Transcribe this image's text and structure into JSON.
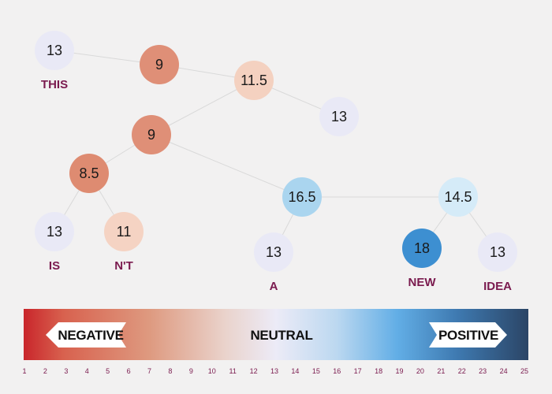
{
  "colors": {
    "background": "#f2f1f1",
    "edge": "#d9d9d9",
    "word": "#7a1a4e",
    "bar_negative": "#c9262b",
    "bar_neutral": "#eceaf6",
    "bar_positive_light": "#62aee6",
    "bar_positive_dark": "#2b4566"
  },
  "tree": {
    "nodes": [
      {
        "id": "n_this",
        "value": "13",
        "fill": "#e9e9f6",
        "word": "THIS"
      },
      {
        "id": "n_9a",
        "value": "9",
        "fill": "#df8f77",
        "word": ""
      },
      {
        "id": "n_115",
        "value": "11.5",
        "fill": "#f4d1c0",
        "word": ""
      },
      {
        "id": "n_13r",
        "value": "13",
        "fill": "#e9e9f6",
        "word": ""
      },
      {
        "id": "n_9b",
        "value": "9",
        "fill": "#df8f77",
        "word": ""
      },
      {
        "id": "n_85",
        "value": "8.5",
        "fill": "#de8b71",
        "word": ""
      },
      {
        "id": "n_is",
        "value": "13",
        "fill": "#e9e9f6",
        "word": "IS"
      },
      {
        "id": "n_nt",
        "value": "11",
        "fill": "#f5d3c3",
        "word": "N'T"
      },
      {
        "id": "n_165",
        "value": "16.5",
        "fill": "#aad5ef",
        "word": ""
      },
      {
        "id": "n_a",
        "value": "13",
        "fill": "#e9e9f6",
        "word": "A"
      },
      {
        "id": "n_145",
        "value": "14.5",
        "fill": "#d5ebf8",
        "word": ""
      },
      {
        "id": "n_new",
        "value": "18",
        "fill": "#3d8fd1",
        "word": "NEW"
      },
      {
        "id": "n_idea",
        "value": "13",
        "fill": "#e9e9f6",
        "word": "IDEA"
      }
    ],
    "edges": [
      [
        "n_this",
        "n_9a"
      ],
      [
        "n_9a",
        "n_115"
      ],
      [
        "n_115",
        "n_13r"
      ],
      [
        "n_115",
        "n_9b"
      ],
      [
        "n_9b",
        "n_85"
      ],
      [
        "n_85",
        "n_is"
      ],
      [
        "n_85",
        "n_nt"
      ],
      [
        "n_9b",
        "n_165"
      ],
      [
        "n_165",
        "n_a"
      ],
      [
        "n_165",
        "n_145"
      ],
      [
        "n_145",
        "n_new"
      ],
      [
        "n_145",
        "n_idea"
      ]
    ]
  },
  "scale": {
    "negative_label": "NEGATIVE",
    "neutral_label": "NEUTRAL",
    "positive_label": "POSITIVE",
    "ticks": [
      "1",
      "2",
      "3",
      "4",
      "5",
      "6",
      "7",
      "8",
      "9",
      "10",
      "11",
      "12",
      "13",
      "14",
      "15",
      "16",
      "17",
      "18",
      "19",
      "20",
      "21",
      "22",
      "23",
      "24",
      "25"
    ]
  }
}
